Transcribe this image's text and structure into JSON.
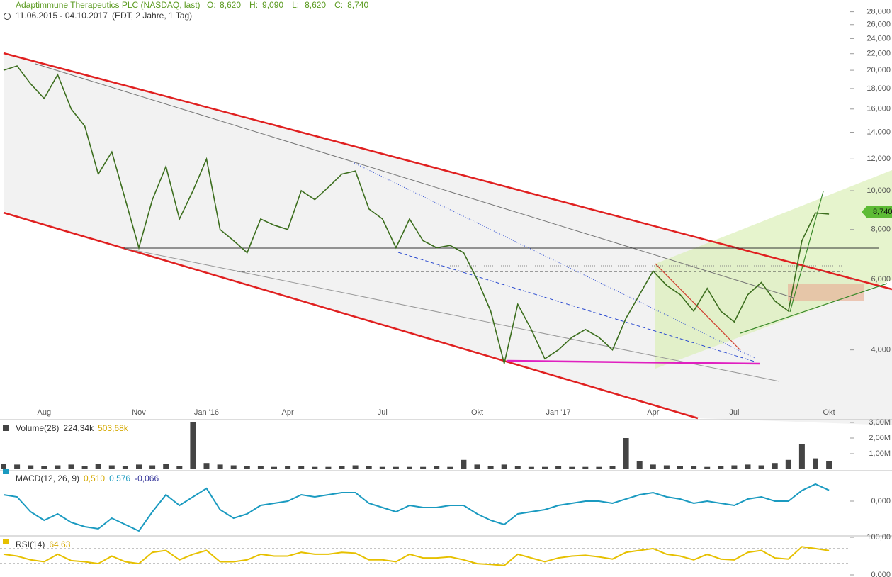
{
  "header": {
    "title": "Adaptimmune Therapeutics PLC (NASDAQ, last)",
    "ohlc": [
      {
        "label": "O:",
        "value": "8,620"
      },
      {
        "label": "H:",
        "value": "9,090"
      },
      {
        "label": "L:",
        "value": "8,620"
      },
      {
        "label": "C:",
        "value": "8,740"
      }
    ],
    "range": "11.06.2015 - 04.10.2017",
    "info": "(EDT, 2 Jahre, 1 Tag)"
  },
  "chart_data": [
    {
      "type": "line",
      "log_scale": true,
      "color": "#3c6e1e",
      "categories": [
        null,
        null,
        null,
        "Aug",
        null,
        null,
        null,
        null,
        null,
        null,
        "Nov",
        null,
        null,
        null,
        null,
        "Jan '16",
        null,
        null,
        null,
        null,
        null,
        "Apr",
        null,
        null,
        null,
        null,
        null,
        null,
        "Jul",
        null,
        null,
        null,
        null,
        null,
        null,
        "Okt",
        null,
        null,
        null,
        null,
        null,
        "Jan '17",
        null,
        null,
        null,
        null,
        null,
        null,
        "Apr",
        null,
        null,
        null,
        null,
        null,
        "Jul",
        null,
        null,
        null,
        null,
        null,
        null,
        "Okt"
      ],
      "values": [
        20000,
        20500,
        18500,
        17000,
        19500,
        16000,
        14500,
        11000,
        12500,
        9500,
        7200,
        9500,
        11500,
        8500,
        10000,
        12000,
        8000,
        7500,
        7000,
        8500,
        8200,
        8000,
        10000,
        9500,
        10200,
        11000,
        11200,
        9000,
        8500,
        7200,
        8500,
        7500,
        7200,
        7300,
        7000,
        6000,
        5000,
        3700,
        5200,
        4500,
        3800,
        4000,
        4300,
        4500,
        4300,
        4000,
        4800,
        5500,
        6300,
        5800,
        5500,
        5000,
        5700,
        5000,
        4700,
        5500,
        5900,
        5300,
        5000,
        7500,
        8800,
        8740
      ],
      "ylim": [
        2700,
        29000
      ],
      "yticks": [
        {
          "value": 4000,
          "label": "4,000"
        },
        {
          "value": 6000,
          "label": "6,000"
        },
        {
          "value": 8000,
          "label": "8,000"
        },
        {
          "value": 10000,
          "label": "10,000"
        },
        {
          "value": 12000,
          "label": "12,000"
        },
        {
          "value": 14000,
          "label": "14,000"
        },
        {
          "value": 16000,
          "label": "16,000"
        },
        {
          "value": 18000,
          "label": "18,000"
        },
        {
          "value": 20000,
          "label": "20,000"
        },
        {
          "value": 22000,
          "label": "22,000"
        },
        {
          "value": 24000,
          "label": "24,000"
        },
        {
          "value": 26000,
          "label": "26,000"
        },
        {
          "value": 28000,
          "label": "28,000"
        }
      ]
    },
    {
      "type": "bar",
      "title": "Volume(28)",
      "color": "#444444",
      "annotations": [
        {
          "text": "224,34k",
          "color": "#333333"
        },
        {
          "text": "503,68k",
          "color": "#d4a800"
        }
      ],
      "values": [
        350000,
        300000,
        250000,
        200000,
        250000,
        300000,
        200000,
        350000,
        250000,
        200000,
        300000,
        250000,
        350000,
        200000,
        3000000,
        400000,
        300000,
        250000,
        200000,
        200000,
        150000,
        200000,
        200000,
        150000,
        150000,
        200000,
        250000,
        200000,
        150000,
        150000,
        150000,
        150000,
        200000,
        150000,
        600000,
        300000,
        200000,
        300000,
        200000,
        150000,
        150000,
        200000,
        150000,
        150000,
        150000,
        200000,
        2000000,
        500000,
        300000,
        250000,
        200000,
        200000,
        150000,
        200000,
        250000,
        300000,
        250000,
        400000,
        600000,
        1600000,
        700000,
        500000
      ],
      "ylim": [
        0,
        3000000
      ],
      "yticks": [
        {
          "value": 1000000,
          "label": "1,00M"
        },
        {
          "value": 2000000,
          "label": "2,00M"
        },
        {
          "value": 3000000,
          "label": "3,00M"
        }
      ]
    },
    {
      "type": "line",
      "title": "MACD(12, 26, 9)",
      "color": "#1a9ac0",
      "annotations": [
        {
          "text": "0,510",
          "color": "#d4a800"
        },
        {
          "text": "0,576",
          "color": "#1a9ac0"
        },
        {
          "text": "-0,066",
          "color": "#333399"
        }
      ],
      "values": [
        0.3,
        0.2,
        -0.5,
        -0.9,
        -0.6,
        -1.0,
        -1.2,
        -1.3,
        -0.8,
        -1.1,
        -1.4,
        -0.5,
        0.3,
        -0.2,
        0.2,
        0.6,
        -0.4,
        -0.8,
        -0.6,
        -0.2,
        -0.1,
        0,
        0.3,
        0.2,
        0.3,
        0.4,
        0.4,
        -0.1,
        -0.3,
        -0.5,
        -0.2,
        -0.3,
        -0.3,
        -0.2,
        -0.2,
        -0.6,
        -0.9,
        -1.1,
        -0.6,
        -0.5,
        -0.4,
        -0.2,
        -0.1,
        0,
        0,
        -0.1,
        0.1,
        0.3,
        0.4,
        0.2,
        0.1,
        -0.1,
        0,
        -0.1,
        -0.2,
        0.1,
        0.2,
        0,
        0,
        0.5,
        0.8,
        0.51
      ],
      "ylim": [
        -1.6,
        1.6
      ],
      "yticks": [
        {
          "value": 0,
          "label": "0,000"
        }
      ]
    },
    {
      "type": "line",
      "title": "RSI(14)",
      "color": "#e6c000",
      "annotations": [
        {
          "text": "64,63",
          "color": "#d4a800"
        }
      ],
      "values": [
        55,
        50,
        40,
        35,
        55,
        38,
        35,
        30,
        50,
        35,
        30,
        60,
        65,
        40,
        55,
        65,
        35,
        35,
        40,
        55,
        50,
        50,
        60,
        55,
        55,
        60,
        58,
        40,
        40,
        35,
        55,
        45,
        45,
        48,
        40,
        30,
        28,
        25,
        55,
        45,
        35,
        45,
        50,
        52,
        48,
        42,
        60,
        65,
        70,
        55,
        50,
        40,
        55,
        42,
        40,
        60,
        65,
        45,
        42,
        75,
        70,
        64.63
      ],
      "ylim": [
        0,
        100
      ],
      "yticks": [
        {
          "value": 0,
          "label": "0,000"
        },
        {
          "value": 100,
          "label": "100,00"
        }
      ]
    }
  ]
}
